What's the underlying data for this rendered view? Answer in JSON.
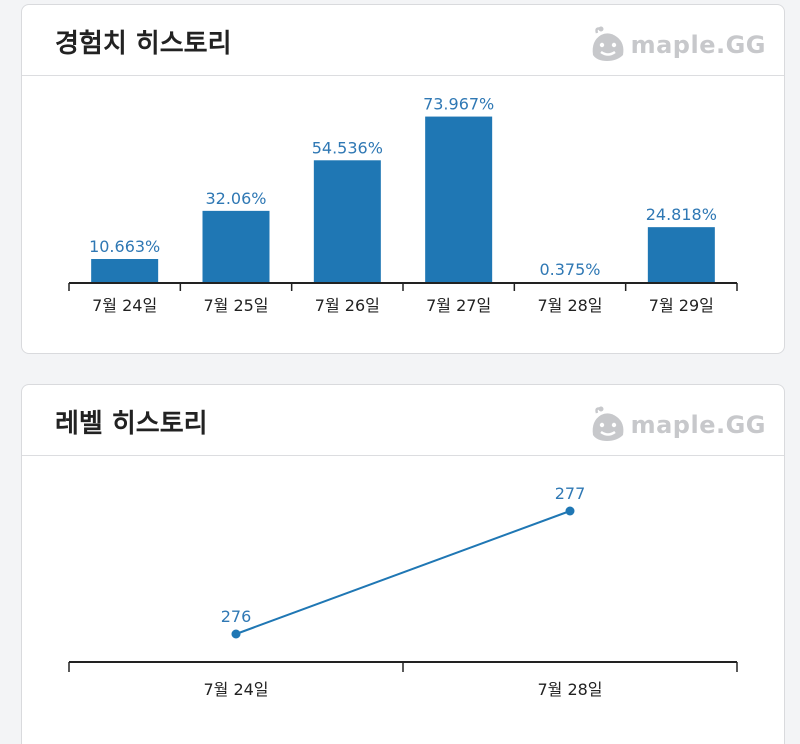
{
  "exp_history": {
    "title": "경험치 히스토리",
    "brand": "maple.GG"
  },
  "level_history": {
    "title": "레벨 히스토리",
    "brand": "maple.GG"
  },
  "colors": {
    "bar": "#1f77b4",
    "label": "#2f78b4",
    "axis": "#222222"
  },
  "chart_data": [
    {
      "type": "bar",
      "categories": [
        "7월 24일",
        "7월 25일",
        "7월 26일",
        "7월 27일",
        "7월 28일",
        "7월 29일"
      ],
      "values": [
        10.663,
        32.06,
        54.536,
        73.967,
        0.375,
        24.818
      ],
      "data_labels": [
        "10.663%",
        "32.06%",
        "54.536%",
        "73.967%",
        "0.375%",
        "24.818%"
      ],
      "title": "",
      "xlabel": "",
      "ylabel": "",
      "ylim": [
        0,
        100
      ],
      "grid": false
    },
    {
      "type": "line",
      "categories": [
        "7월 24일",
        "7월 28일"
      ],
      "values": [
        276,
        277
      ],
      "data_labels": [
        "276",
        "277"
      ],
      "title": "",
      "xlabel": "",
      "ylabel": "",
      "grid": false
    }
  ]
}
